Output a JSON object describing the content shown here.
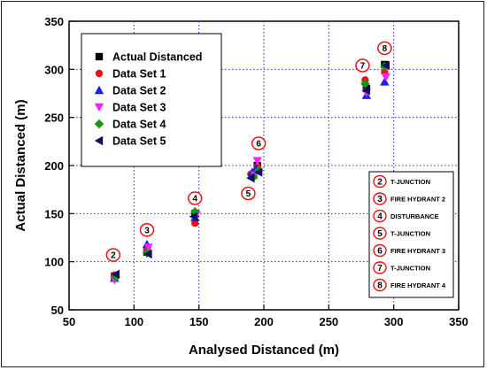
{
  "chart_data": {
    "type": "scatter",
    "title": "",
    "xlabel": "Analysed Distanced (m)",
    "ylabel": "Actual Distanced (m)",
    "xlim": [
      50,
      350
    ],
    "ylim": [
      50,
      350
    ],
    "x_ticks": [
      50,
      100,
      150,
      200,
      250,
      300,
      350
    ],
    "y_ticks": [
      50,
      100,
      150,
      200,
      250,
      300,
      350
    ],
    "grid": "dotted",
    "legend_position": "top-left",
    "series": [
      {
        "name": "Actual Distanced",
        "marker": "square",
        "color": "#000000",
        "points": [
          [
            85,
            85
          ],
          [
            110,
            110
          ],
          [
            147,
            150
          ],
          [
            192,
            190
          ],
          [
            195,
            200
          ],
          [
            279,
            280
          ],
          [
            293,
            305
          ]
        ]
      },
      {
        "name": "Data Set 1",
        "marker": "circle",
        "color": "#ee1111",
        "points": [
          [
            85,
            86
          ],
          [
            110,
            112
          ],
          [
            147,
            140
          ],
          [
            190,
            191
          ],
          [
            195,
            199
          ],
          [
            278,
            289
          ],
          [
            293,
            297
          ]
        ]
      },
      {
        "name": "Data Set 2",
        "marker": "triangle-up",
        "color": "#1a1aff",
        "points": [
          [
            85,
            83
          ],
          [
            110,
            118
          ],
          [
            147,
            146
          ],
          [
            191,
            193
          ],
          [
            194,
            197
          ],
          [
            279,
            273
          ],
          [
            293,
            287
          ]
        ]
      },
      {
        "name": "Data Set 3",
        "marker": "triangle-down",
        "color": "#ff22ff",
        "points": [
          [
            85,
            81
          ],
          [
            111,
            115
          ],
          [
            148,
            149
          ],
          [
            193,
            190
          ],
          [
            195,
            205
          ],
          [
            279,
            276
          ],
          [
            294,
            292
          ]
        ]
      },
      {
        "name": "Data Set 4",
        "marker": "diamond",
        "color": "#119911",
        "points": [
          [
            86,
            84
          ],
          [
            110,
            109
          ],
          [
            147,
            152
          ],
          [
            192,
            188
          ],
          [
            196,
            195
          ],
          [
            278,
            285
          ],
          [
            293,
            303
          ]
        ]
      },
      {
        "name": "Data Set 5",
        "marker": "triangle-left",
        "color": "#101060",
        "points": [
          [
            86,
            87
          ],
          [
            111,
            108
          ],
          [
            146,
            147
          ],
          [
            190,
            187
          ],
          [
            196,
            193
          ],
          [
            279,
            278
          ],
          [
            294,
            304
          ]
        ]
      }
    ],
    "annotations": [
      {
        "number": "2",
        "x": 84,
        "y": 107
      },
      {
        "number": "3",
        "x": 110,
        "y": 133
      },
      {
        "number": "4",
        "x": 147,
        "y": 166
      },
      {
        "number": "5",
        "x": 188,
        "y": 171
      },
      {
        "number": "6",
        "x": 196,
        "y": 223
      },
      {
        "number": "7",
        "x": 276,
        "y": 304
      },
      {
        "number": "8",
        "x": 293,
        "y": 322
      }
    ],
    "annotation_key": [
      {
        "number": "2",
        "label": "T-JUNCTION"
      },
      {
        "number": "3",
        "label": "FIRE HYDRANT 2"
      },
      {
        "number": "4",
        "label": "DISTURBANCE"
      },
      {
        "number": "5",
        "label": "T-JUNCTION"
      },
      {
        "number": "6",
        "label": "FIRE HYDRANT 3"
      },
      {
        "number": "7",
        "label": "T-JUNCTION"
      },
      {
        "number": "8",
        "label": "FIRE HYDRANT 4"
      }
    ],
    "annotation_color": "#ee1111"
  }
}
